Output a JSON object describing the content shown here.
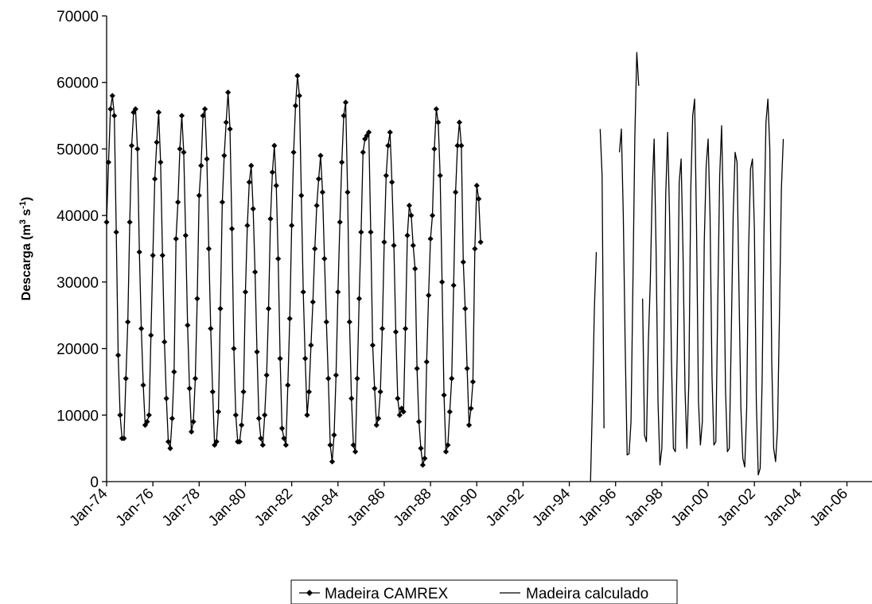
{
  "chart_data": {
    "type": "line",
    "title": "",
    "xlabel": "",
    "ylabel": "Descarga (m3 s-1)",
    "ylabel_parts": {
      "prefix": "Descarga (m",
      "sup1": "3",
      "mid": " s",
      "sup2": "-1",
      "suffix": ")"
    },
    "xlim": [
      "1974-01",
      "2007-02"
    ],
    "ylim": [
      0,
      70000
    ],
    "y_ticks": [
      0,
      10000,
      20000,
      30000,
      40000,
      50000,
      60000,
      70000
    ],
    "y_tick_labels": [
      "0",
      "10000",
      "20000",
      "30000",
      "40000",
      "50000",
      "60000",
      "70000"
    ],
    "x_ticks": [
      "1974-01",
      "1976-01",
      "1978-01",
      "1980-01",
      "1982-01",
      "1984-01",
      "1986-01",
      "1988-01",
      "1990-01",
      "1992-01",
      "1994-01",
      "1996-01",
      "1998-01",
      "2000-01",
      "2002-01",
      "2004-01",
      "2006-01"
    ],
    "x_tick_labels": [
      "Jan-74",
      "Jan-76",
      "Jan-78",
      "Jan-80",
      "Jan-82",
      "Jan-84",
      "Jan-86",
      "Jan-88",
      "Jan-90",
      "Jan-92",
      "Jan-94",
      "Jan-96",
      "Jan-98",
      "Jan-00",
      "Jan-02",
      "Jan-04",
      "Jan-06"
    ],
    "grid": false,
    "legend_position": "bottom",
    "series": [
      {
        "name": "Madeira CAMREX",
        "marker": "diamond",
        "color": "#000000",
        "start": "1974-01",
        "values": [
          39000,
          48000,
          56000,
          58000,
          55000,
          37500,
          19000,
          10000,
          6500,
          6500,
          15500,
          24000,
          39000,
          50500,
          55500,
          56000,
          50000,
          34500,
          23000,
          14500,
          8500,
          9000,
          10000,
          22000,
          34000,
          45500,
          51000,
          55500,
          48000,
          34000,
          21000,
          12500,
          6000,
          5000,
          9500,
          16500,
          36500,
          42000,
          50000,
          55000,
          49500,
          37000,
          23500,
          14000,
          7500,
          9000,
          15500,
          27500,
          43000,
          47500,
          55000,
          56000,
          48500,
          35000,
          23000,
          13500,
          5500,
          6000,
          10500,
          26000,
          42000,
          49000,
          54000,
          58500,
          53000,
          38000,
          20000,
          10000,
          6000,
          6000,
          8500,
          13500,
          28500,
          38500,
          45000,
          47500,
          41000,
          31500,
          19500,
          9500,
          6500,
          5500,
          10000,
          16000,
          26000,
          39500,
          46500,
          50500,
          44500,
          33500,
          18500,
          8000,
          6500,
          5500,
          14500,
          24500,
          38500,
          49500,
          56500,
          61000,
          58000,
          43000,
          28500,
          18500,
          10000,
          13500,
          20500,
          27000,
          35000,
          41500,
          45500,
          49000,
          43500,
          33500,
          24000,
          15500,
          5500,
          3000,
          7000,
          16000,
          28500,
          39000,
          48000,
          55000,
          57000,
          43500,
          24000,
          12500,
          5500,
          4500,
          15500,
          27500,
          37500,
          49500,
          51500,
          52000,
          52500,
          37500,
          20500,
          14000,
          8500,
          9500,
          13500,
          23000,
          36000,
          46000,
          50500,
          52500,
          45000,
          35500,
          22500,
          12500,
          10000,
          11000,
          10500,
          23000,
          37000,
          41500,
          40000,
          35500,
          32000,
          17000,
          9000,
          5000,
          2500,
          3500,
          18000,
          28000,
          36500,
          40000,
          50000,
          56000,
          54000,
          46000,
          30000,
          13000,
          4500,
          5500,
          10500,
          15500,
          29500,
          43500,
          50500,
          54000,
          50500,
          33000,
          26000,
          17000,
          8500,
          11000,
          15000,
          35000,
          44500,
          42500,
          36000
        ]
      },
      {
        "name": "Madeira calculado",
        "marker": "none",
        "color": "#000000",
        "start": "1994-12",
        "values": [
          0,
          12000,
          26000,
          34500,
          null,
          53000,
          46000,
          8000,
          null,
          null,
          null,
          null,
          null,
          null,
          null,
          49500,
          53000,
          40000,
          20000,
          4000,
          4200,
          9000,
          30000,
          52000,
          64500,
          59500,
          null,
          27500,
          7000,
          6000,
          21000,
          30000,
          44000,
          51500,
          35000,
          12000,
          2500,
          5000,
          19000,
          43000,
          52500,
          40000,
          18000,
          5000,
          4500,
          20000,
          45000,
          48500,
          34000,
          14000,
          5000,
          15000,
          44000,
          55000,
          57500,
          38000,
          12000,
          5500,
          9000,
          36000,
          47500,
          51500,
          40000,
          16000,
          5500,
          6000,
          27000,
          46000,
          53500,
          39000,
          14000,
          4500,
          5000,
          22000,
          40000,
          49500,
          48000,
          29000,
          11000,
          3500,
          2200,
          11000,
          35000,
          47000,
          48500,
          38000,
          12000,
          1000,
          2000,
          15000,
          38000,
          54000,
          57500,
          50000,
          18000,
          5000,
          3000,
          8000,
          25000,
          44000,
          51500
        ]
      }
    ]
  },
  "legend": {
    "items": [
      {
        "label": "Madeira CAMREX"
      },
      {
        "label": "Madeira calculado"
      }
    ]
  }
}
